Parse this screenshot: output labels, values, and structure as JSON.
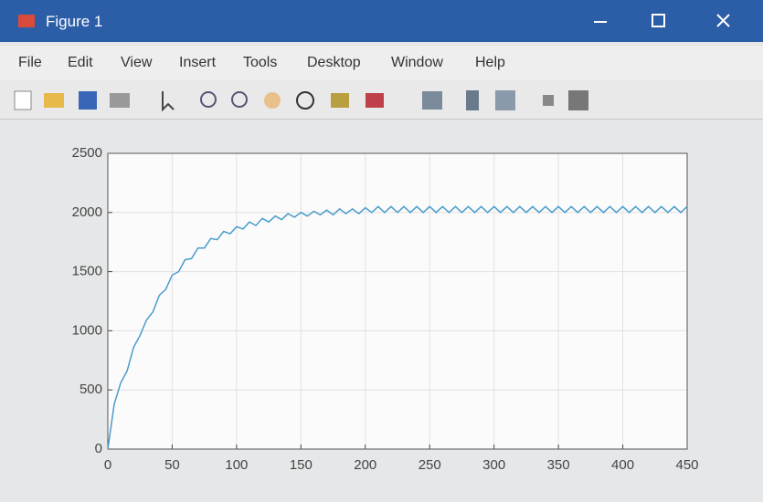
{
  "window": {
    "title": "Figure 1",
    "menu": [
      "File",
      "Edit",
      "View",
      "Insert",
      "Tools",
      "Desktop",
      "Window",
      "Help"
    ]
  },
  "chart_data": {
    "type": "line",
    "color": "#4a9ccc",
    "grid": true,
    "x": [
      0,
      5,
      10,
      15,
      20,
      25,
      30,
      35,
      40,
      45,
      50,
      55,
      60,
      65,
      70,
      75,
      80,
      85,
      90,
      95,
      100,
      105,
      110,
      115,
      120,
      125,
      130,
      135,
      140,
      145,
      150,
      155,
      160,
      165,
      170,
      175,
      180,
      185,
      190,
      195,
      200,
      205,
      210,
      215,
      220,
      225,
      230,
      235,
      240,
      245,
      250,
      255,
      260,
      265,
      270,
      275,
      280,
      285,
      290,
      295,
      300,
      305,
      310,
      315,
      320,
      325,
      330,
      335,
      340,
      345,
      350,
      355,
      360,
      365,
      370,
      375,
      380,
      385,
      390,
      395,
      400,
      405,
      410,
      415,
      420,
      425,
      430,
      435,
      440,
      445,
      450
    ],
    "values": [
      0,
      380,
      560,
      660,
      860,
      960,
      1090,
      1160,
      1300,
      1350,
      1470,
      1500,
      1600,
      1610,
      1700,
      1700,
      1780,
      1770,
      1840,
      1820,
      1880,
      1860,
      1920,
      1890,
      1950,
      1920,
      1970,
      1940,
      1990,
      1960,
      2000,
      1970,
      2010,
      1980,
      2020,
      1980,
      2030,
      1990,
      2030,
      1990,
      2040,
      2000,
      2050,
      2000,
      2050,
      2000,
      2050,
      2000,
      2050,
      2000,
      2050,
      2000,
      2050,
      2000,
      2050,
      2000,
      2050,
      2000,
      2050,
      2000,
      2050,
      2000,
      2050,
      2000,
      2050,
      2000,
      2050,
      2000,
      2050,
      2000,
      2050,
      2000,
      2050,
      2000,
      2050,
      2000,
      2050,
      2000,
      2050,
      2000,
      2050,
      2000,
      2050,
      2000,
      2050,
      2000,
      2050,
      2000,
      2050,
      2000,
      2050
    ],
    "xlim": [
      0,
      450
    ],
    "xticks": [
      0,
      50,
      100,
      150,
      200,
      250,
      300,
      350,
      400,
      450
    ],
    "ylim": [
      0,
      2500
    ],
    "yticks": [
      0,
      500,
      1000,
      1500,
      2000,
      2500
    ]
  }
}
